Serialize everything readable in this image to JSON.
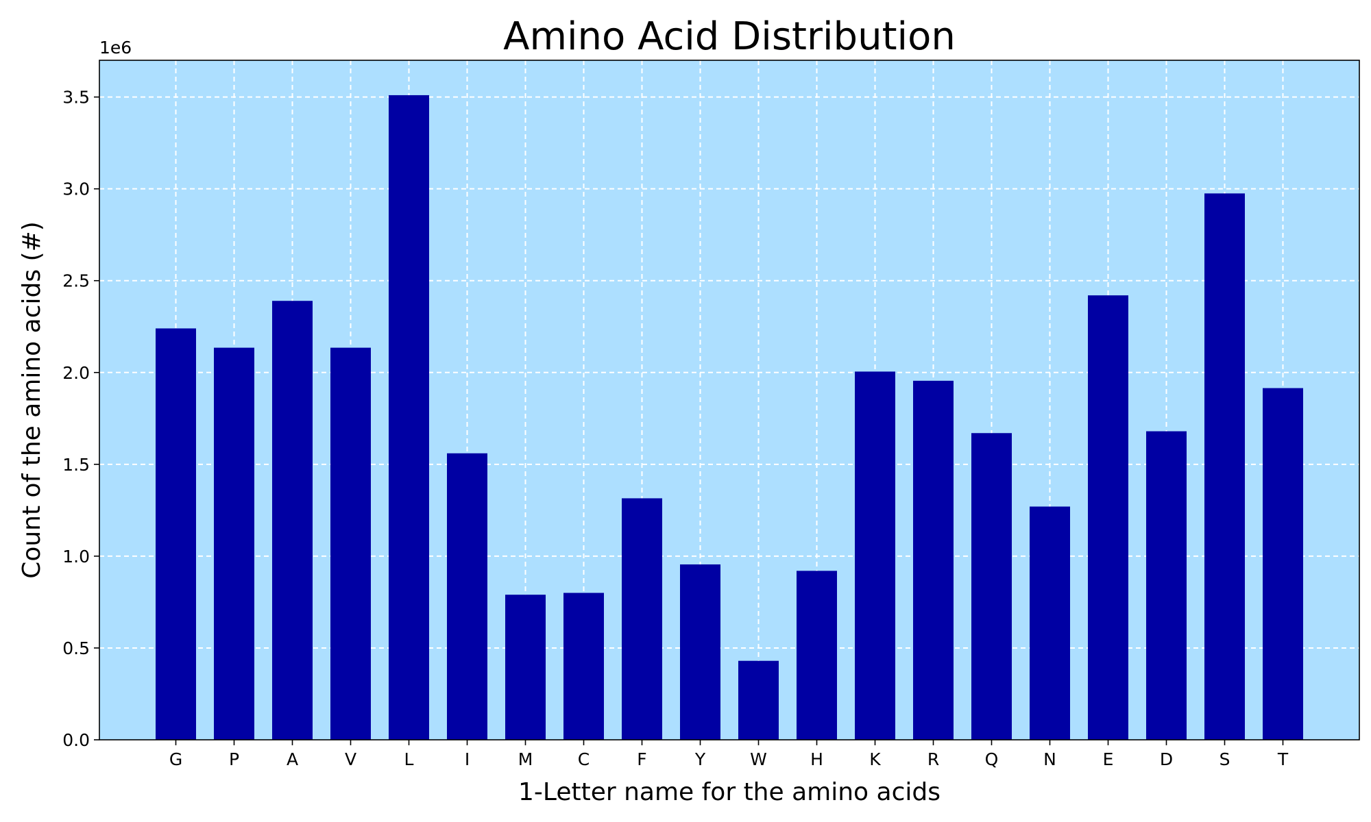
{
  "chart_data": {
    "type": "bar",
    "title": "Amino Acid Distribution",
    "xlabel": "1-Letter name for the amino acids",
    "ylabel": "Count of the amino acids (#)",
    "y_offset_label": "1e6",
    "categories": [
      "G",
      "P",
      "A",
      "V",
      "L",
      "I",
      "M",
      "C",
      "F",
      "Y",
      "W",
      "H",
      "K",
      "R",
      "Q",
      "N",
      "E",
      "D",
      "S",
      "T"
    ],
    "values": [
      2240000,
      2135000,
      2390000,
      2135000,
      3510000,
      1560000,
      790000,
      800000,
      1315000,
      955000,
      430000,
      920000,
      2005000,
      1955000,
      1670000,
      1270000,
      2420000,
      1680000,
      2975000,
      1915000
    ],
    "ylim": [
      0,
      3700000
    ],
    "yticks": [
      0,
      500000,
      1000000,
      1500000,
      2000000,
      2500000,
      3000000,
      3500000
    ],
    "ytick_labels": [
      "0.0",
      "0.5",
      "1.0",
      "1.5",
      "2.0",
      "2.5",
      "3.0",
      "3.5"
    ],
    "grid": true,
    "colors": {
      "bar": "#0000a3",
      "plot_background": "#addfff",
      "grid": "#ffffff"
    }
  }
}
